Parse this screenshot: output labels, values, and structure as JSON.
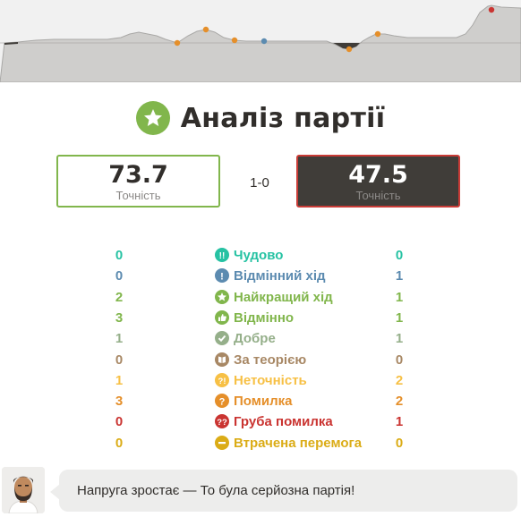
{
  "header": {
    "title": "Аналіз партії",
    "title_icon": "star-icon"
  },
  "accuracy": {
    "white": {
      "value": "73.7",
      "label": "Точність"
    },
    "black": {
      "value": "47.5",
      "label": "Точність"
    },
    "result": "1-0"
  },
  "classifications": [
    {
      "label": "Чудово",
      "white": "0",
      "black": "0",
      "color": "#26c2a3",
      "icon": "brilliant-icon"
    },
    {
      "label": "Відмінний хід",
      "white": "0",
      "black": "1",
      "color": "#5c8bb0",
      "icon": "great-move-icon"
    },
    {
      "label": "Найкращий хід",
      "white": "2",
      "black": "1",
      "color": "#81b64c",
      "icon": "best-move-icon"
    },
    {
      "label": "Відмінно",
      "white": "3",
      "black": "1",
      "color": "#81b64c",
      "icon": "excellent-icon"
    },
    {
      "label": "Добре",
      "white": "1",
      "black": "1",
      "color": "#95af8a",
      "icon": "good-icon"
    },
    {
      "label": "За теорією",
      "white": "0",
      "black": "0",
      "color": "#a88865",
      "icon": "book-icon"
    },
    {
      "label": "Неточність",
      "white": "1",
      "black": "2",
      "color": "#f7c045",
      "icon": "inaccuracy-icon"
    },
    {
      "label": "Помилка",
      "white": "3",
      "black": "2",
      "color": "#e58f2a",
      "icon": "mistake-icon"
    },
    {
      "label": "Груба помилка",
      "white": "0",
      "black": "1",
      "color": "#ca3431",
      "icon": "blunder-icon"
    },
    {
      "label": "Втрачена перемога",
      "white": "0",
      "black": "0",
      "color": "#dbac16",
      "icon": "missed-win-icon"
    }
  ],
  "coach": {
    "message": "Напруга зростає — То була серйозна партія!",
    "avatar_icon": "coach-avatar"
  },
  "colors": {
    "accent_green": "#81b64c",
    "dark_box": "#403d39",
    "dark_border": "#c93c37",
    "text_dark": "#312e2b"
  }
}
